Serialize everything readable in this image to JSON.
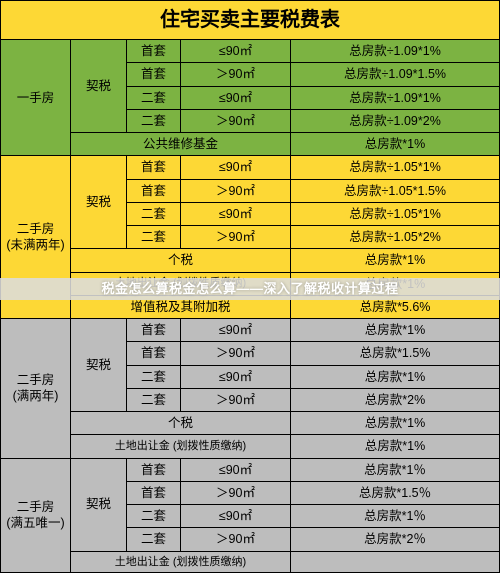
{
  "title": "住宅买卖主要税费表",
  "colors": {
    "header_bg": "#fdd835",
    "green_bg": "#7cb342",
    "yellow_bg": "#fdd835",
    "gray_bg": "#bdbdbd",
    "border": "#000000",
    "overlay_text": "#ffffff"
  },
  "overlay_text": "税金怎么算税金怎么算——深入了解税收计算过程",
  "sections": [
    {
      "name": "一手房",
      "color": "green",
      "blocks": [
        {
          "tax": "契税",
          "rows": [
            {
              "opt": "首套",
              "area": "≤90㎡",
              "formula": "总房款÷1.09*1%"
            },
            {
              "opt": "首套",
              "area": "＞90㎡",
              "formula": "总房款÷1.09*1.5%"
            },
            {
              "opt": "二套",
              "area": "≤90㎡",
              "formula": "总房款÷1.09*1%"
            },
            {
              "opt": "二套",
              "area": "＞90㎡",
              "formula": "总房款÷1.09*2%"
            }
          ]
        },
        {
          "tax_full": "公共维修基金",
          "formula": "总房款*1%"
        }
      ]
    },
    {
      "name": "二手房\n(未满两年)",
      "color": "yellow",
      "blocks": [
        {
          "tax": "契税",
          "rows": [
            {
              "opt": "首套",
              "area": "≤90㎡",
              "formula": "总房款÷1.05*1%"
            },
            {
              "opt": "首套",
              "area": "＞90㎡",
              "formula": "总房款÷1.05*1.5%"
            },
            {
              "opt": "二套",
              "area": "≤90㎡",
              "formula": "总房款÷1.05*1%"
            },
            {
              "opt": "二套",
              "area": "＞90㎡",
              "formula": "总房款÷1.05*2%"
            }
          ]
        },
        {
          "tax_full": "个税",
          "formula": "总房款*1%"
        },
        {
          "tax_full": "土地出让金  (划拨性质缴纳)",
          "formula": "总房款*1%"
        },
        {
          "tax_full": "增值税及其附加税",
          "formula": "总房款*5.6%"
        }
      ]
    },
    {
      "name": "二手房\n(满两年)",
      "color": "gray",
      "blocks": [
        {
          "tax": "契税",
          "rows": [
            {
              "opt": "首套",
              "area": "≤90㎡",
              "formula": "总房款*1%"
            },
            {
              "opt": "首套",
              "area": "＞90㎡",
              "formula": "总房款*1.5%"
            },
            {
              "opt": "二套",
              "area": "≤90㎡",
              "formula": "总房款*1%"
            },
            {
              "opt": "二套",
              "area": "＞90㎡",
              "formula": "总房款*2%"
            }
          ]
        },
        {
          "tax_full": "个税",
          "formula": "总房款*1%"
        },
        {
          "tax_full": "土地出让金  (划拨性质缴纳)",
          "formula": "总房款*1%"
        }
      ]
    },
    {
      "name": "二手房\n(满五唯一)",
      "color": "gray",
      "blocks": [
        {
          "tax": "契税",
          "rows": [
            {
              "opt": "首套",
              "area": "≤90㎡",
              "formula": "总房款*1％"
            },
            {
              "opt": "首套",
              "area": "＞90㎡",
              "formula": "总房款*1.5％"
            },
            {
              "opt": "二套",
              "area": "≤90㎡",
              "formula": "总房款*1％"
            },
            {
              "opt": "二套",
              "area": "＞90㎡",
              "formula": "总房款*2％"
            }
          ]
        },
        {
          "tax_full": "土地出让金  (划拨性质缴纳)",
          "formula": ""
        }
      ]
    }
  ]
}
